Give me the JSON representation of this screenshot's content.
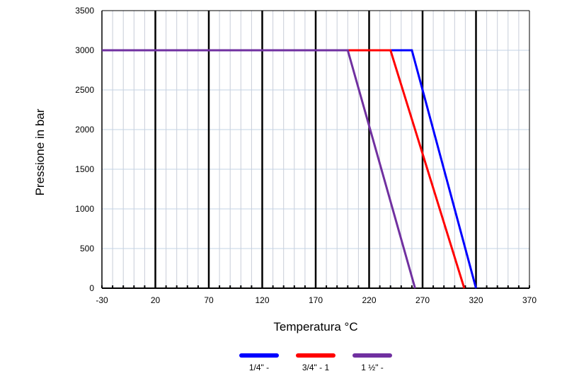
{
  "chart_data": {
    "type": "line",
    "title": "",
    "xlabel": "Temperatura °C",
    "ylabel": "Pressione in bar",
    "xlim": [
      -30,
      370
    ],
    "ylim": [
      0,
      3500
    ],
    "x_ticks": [
      -30,
      20,
      70,
      120,
      170,
      220,
      270,
      320,
      370
    ],
    "y_ticks": [
      0,
      500,
      1000,
      1500,
      2000,
      2500,
      3000,
      3500
    ],
    "x_tick_labels": [
      "-30",
      "20",
      "70",
      "120",
      "170",
      "220",
      "270",
      "320",
      "370"
    ],
    "y_tick_labels": [
      "0",
      "500",
      "1000",
      "1500",
      "2000",
      "2500",
      "3000",
      "3500"
    ],
    "grid": true,
    "legend_position": "bottom-center",
    "series": [
      {
        "name": "1/4\" -",
        "color": "#0000ff",
        "points": [
          [
            -30,
            3000
          ],
          [
            260,
            3000
          ],
          [
            320,
            0
          ]
        ]
      },
      {
        "name": "3/4\" - 1",
        "color": "#ff0000",
        "points": [
          [
            -30,
            3000
          ],
          [
            240,
            3000
          ],
          [
            309,
            0
          ]
        ]
      },
      {
        "name": "1 ½\" -",
        "color": "#7030a0",
        "points": [
          [
            -30,
            3000
          ],
          [
            200,
            3000
          ],
          [
            263,
            0
          ]
        ]
      }
    ]
  }
}
